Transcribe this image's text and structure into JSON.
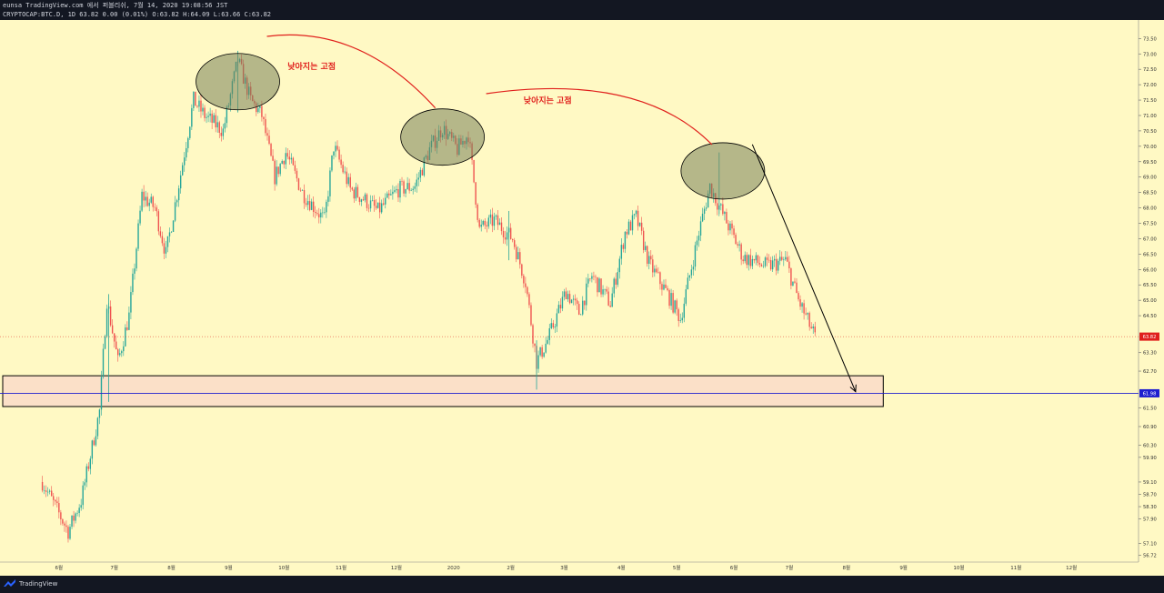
{
  "header": {
    "line1": "eunsa TradingView.com 에서 퍼블리쉬, 7월 14, 2020 19:08:56 JST",
    "line2": "CRYPTOCAP:BTC.D, 1D 63.82 0.00 (0.01%) O:63.82 H:64.09 L:63.66 C:63.82"
  },
  "footer": {
    "brand": "TradingView",
    "logo_icon": "tradingview-logo-icon"
  },
  "colors": {
    "background": "#fff9c4",
    "up": "#26a69a",
    "down": "#ef5350",
    "annotation_red": "#e0201c",
    "support_line": "#1e1ecf",
    "last_price_tag": "#e0201c",
    "support_tag": "#1e1ecf"
  },
  "chart_data": {
    "type": "candlestick",
    "title": "",
    "symbol": "CRYPTOCAP:BTC.D",
    "interval": "1D",
    "ylim": [
      56.5,
      74.1
    ],
    "y_ticks": [
      "74.00",
      "73.50",
      "73.00",
      "72.50",
      "72.00",
      "71.50",
      "71.00",
      "70.50",
      "70.00",
      "69.50",
      "69.00",
      "68.50",
      "68.00",
      "67.50",
      "67.00",
      "66.50",
      "66.00",
      "65.50",
      "65.00",
      "64.50",
      "63.82",
      "63.30",
      "62.70",
      "61.98",
      "61.50",
      "60.90",
      "60.30",
      "59.90",
      "59.10",
      "58.70",
      "58.30",
      "57.90",
      "57.10",
      "56.72"
    ],
    "x_ticks": [
      "6월",
      "7월",
      "8월",
      "9월",
      "10월",
      "11월",
      "12월",
      "2020",
      "2월",
      "3월",
      "4월",
      "5월",
      "6월",
      "7월",
      "8월",
      "9월",
      "10월",
      "11월",
      "12월"
    ],
    "last_price": "63.82",
    "support_level": "61.98",
    "support_zone": [
      61.55,
      62.55
    ],
    "annotations": [
      {
        "text": "낮아지는 고점",
        "x": "2019-10-15",
        "y": 72.5
      },
      {
        "text": "낮아지는 고점",
        "x": "2020-02-20",
        "y": 71.4
      }
    ],
    "highlighted_peaks": [
      {
        "x": "2019-09-05",
        "y": 72.1
      },
      {
        "x": "2019-12-25",
        "y": 70.3
      },
      {
        "x": "2020-05-25",
        "y": 69.2
      }
    ],
    "projection": {
      "from": [
        "2020-06-10",
        70.0
      ],
      "to": [
        "2020-08-05",
        62.0
      ]
    },
    "path": [
      [
        "2019-05-22",
        59.1
      ],
      [
        "2019-06-05",
        57.5
      ],
      [
        "2019-06-12",
        58.5
      ],
      [
        "2019-06-22",
        61.4
      ],
      [
        "2019-06-26",
        65.0
      ],
      [
        "2019-07-02",
        63.0
      ],
      [
        "2019-07-08",
        64.5
      ],
      [
        "2019-07-15",
        68.4
      ],
      [
        "2019-07-22",
        68.0
      ],
      [
        "2019-07-28",
        66.5
      ],
      [
        "2019-08-05",
        69.1
      ],
      [
        "2019-08-12",
        71.5
      ],
      [
        "2019-08-18",
        71.0
      ],
      [
        "2019-08-28",
        70.5
      ],
      [
        "2019-09-05",
        72.8
      ],
      [
        "2019-09-12",
        71.5
      ],
      [
        "2019-09-18",
        71.0
      ],
      [
        "2019-09-25",
        69.0
      ],
      [
        "2019-10-01",
        69.8
      ],
      [
        "2019-10-10",
        68.5
      ],
      [
        "2019-10-22",
        67.6
      ],
      [
        "2019-10-27",
        70.0
      ],
      [
        "2019-11-05",
        68.6
      ],
      [
        "2019-11-12",
        68.3
      ],
      [
        "2019-11-20",
        67.9
      ],
      [
        "2019-12-01",
        68.6
      ],
      [
        "2019-12-10",
        68.7
      ],
      [
        "2019-12-18",
        69.9
      ],
      [
        "2019-12-25",
        70.6
      ],
      [
        "2020-01-02",
        69.9
      ],
      [
        "2020-01-08",
        70.4
      ],
      [
        "2020-01-14",
        67.3
      ],
      [
        "2020-01-22",
        67.6
      ],
      [
        "2020-02-01",
        67.0
      ],
      [
        "2020-02-08",
        65.6
      ],
      [
        "2020-02-14",
        63.0
      ],
      [
        "2020-02-20",
        63.7
      ],
      [
        "2020-03-01",
        65.3
      ],
      [
        "2020-03-08",
        64.6
      ],
      [
        "2020-03-15",
        65.8
      ],
      [
        "2020-03-25",
        64.9
      ],
      [
        "2020-04-02",
        67.2
      ],
      [
        "2020-04-08",
        67.7
      ],
      [
        "2020-04-15",
        66.2
      ],
      [
        "2020-04-25",
        65.2
      ],
      [
        "2020-05-02",
        64.4
      ],
      [
        "2020-05-12",
        67.2
      ],
      [
        "2020-05-18",
        68.7
      ],
      [
        "2020-05-25",
        67.8
      ],
      [
        "2020-06-05",
        66.4
      ],
      [
        "2020-06-18",
        66.1
      ],
      [
        "2020-06-28",
        66.3
      ],
      [
        "2020-07-05",
        65.0
      ],
      [
        "2020-07-14",
        63.8
      ]
    ],
    "spikes": [
      [
        "2019-06-27",
        61.7,
        65.2
      ],
      [
        "2020-02-14",
        62.1,
        63.7
      ],
      [
        "2020-05-23",
        67.8,
        69.8
      ],
      [
        "2020-01-30",
        66.3,
        67.9
      ],
      [
        "2019-09-05",
        71.1,
        73.1
      ]
    ]
  }
}
